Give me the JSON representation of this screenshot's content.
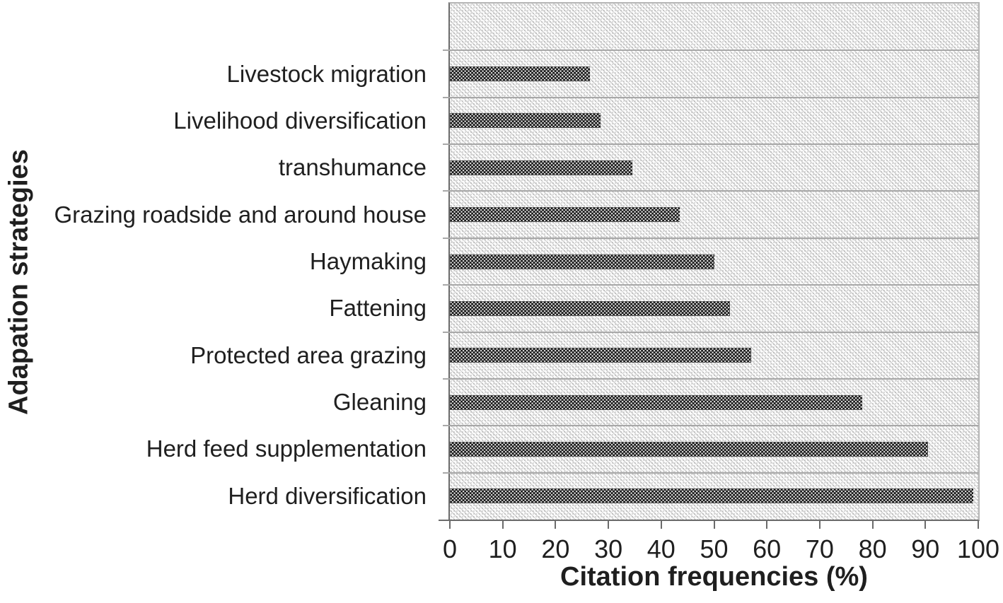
{
  "chart_data": {
    "type": "bar",
    "orientation": "horizontal",
    "title": "",
    "xlabel": "Citation frequencies (%)",
    "ylabel": "Adapation strategies",
    "xlim": [
      0,
      100
    ],
    "xticks": [
      0,
      10,
      20,
      30,
      40,
      50,
      60,
      70,
      80,
      90,
      100
    ],
    "categories": [
      "Livestock migration",
      "Livelihood diversification",
      "transhumance",
      "Grazing roadside and around house",
      "Haymaking",
      "Fattening",
      "Protected area grazing",
      "Gleaning",
      "Herd feed supplementation",
      "Herd diversification"
    ],
    "values": [
      26.5,
      28.5,
      34.5,
      43.5,
      50,
      53,
      57,
      78,
      90.5,
      99
    ],
    "grid": "horizontal-category-band-lines",
    "empty_top_band": true,
    "legend_position": "none",
    "bar_texture": "dark-crosshatch-white-dots",
    "plot_background_texture": "light-downward-diagonal-hatch",
    "colors": {
      "bar": "#161616",
      "bar_pattern_dots": "#ffffff",
      "plot_hatch": "#9e9e9e",
      "gridline": "#a8a8a8",
      "axis": "#6b6b6b",
      "border": "#b5b5b5",
      "text": "#1f1f1f",
      "background": "#ffffff"
    }
  }
}
